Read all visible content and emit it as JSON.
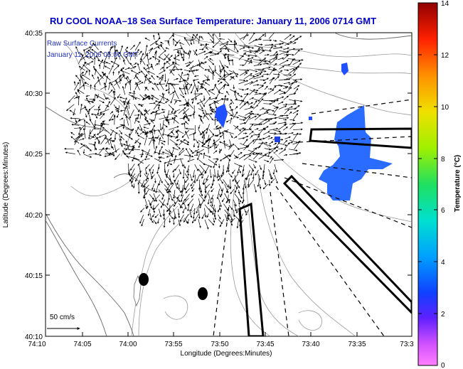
{
  "title": "RU COOL  NOAA–18  Sea Surface Temperature:  January 11, 2006 0714 GMT",
  "inset": {
    "line1": "Raw Surface Currents",
    "line2": "January 11, 2006 05:00 GMT"
  },
  "axes": {
    "ylabel": "Latitude (Degrees:Minutes)",
    "xlabel": "Longitude (Degrees:Minutes)",
    "xticks": [
      "74:10",
      "74:05",
      "74:00",
      "73:55",
      "73:50",
      "73:45",
      "73:40",
      "73:35",
      "73:3"
    ],
    "yticks": [
      "40:35",
      "40:30",
      "40:25",
      "40:20",
      "40:15",
      "40:10"
    ]
  },
  "scale": {
    "label": "50 cm/s"
  },
  "colorbar": {
    "label": "Temperature (°C)",
    "ticks": [
      "14",
      "12",
      "10",
      "8",
      "6",
      "4",
      "2",
      "0"
    ],
    "range": [
      0,
      14
    ]
  },
  "colors": {
    "title": "#0000c8",
    "inset": "#2030c0",
    "sst_patch": "#2a6cff",
    "sst_patch_dark": "#1f3fe0"
  }
}
